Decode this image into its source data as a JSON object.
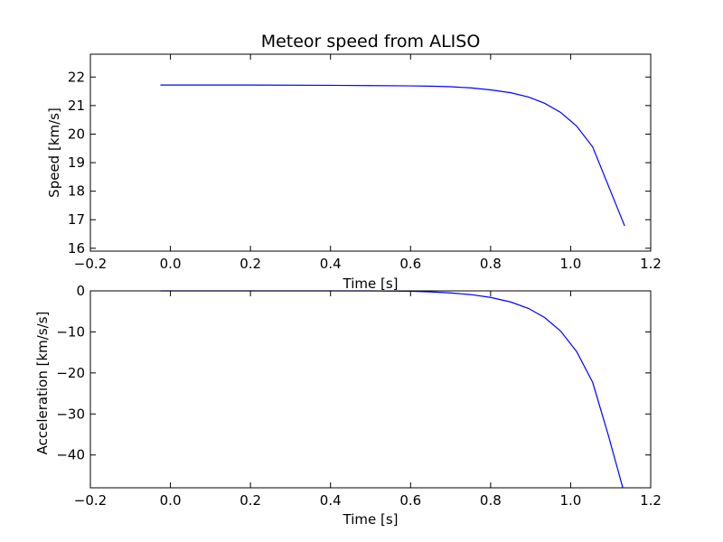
{
  "chart_data": [
    {
      "type": "line",
      "title": "Meteor speed from  ALISO",
      "xlabel": "Time [s]",
      "ylabel": "Speed [km/s]",
      "xlim": [
        -0.2,
        1.2
      ],
      "ylim": [
        15.9,
        22.8
      ],
      "xticks": [
        -0.2,
        0.0,
        0.2,
        0.4,
        0.6,
        0.8,
        1.0,
        1.2
      ],
      "xtick_labels": [
        "−0.2",
        "0.0",
        "0.2",
        "0.4",
        "0.6",
        "0.8",
        "1.0",
        "1.2"
      ],
      "yticks": [
        16,
        17,
        18,
        19,
        20,
        21,
        22
      ],
      "ytick_labels": [
        "16",
        "17",
        "18",
        "19",
        "20",
        "21",
        "22"
      ],
      "grid": false,
      "series": [
        {
          "color": "#0000ff",
          "x": [
            -0.025,
            0.2,
            0.4,
            0.5,
            0.6,
            0.65,
            0.7,
            0.75,
            0.8,
            0.85,
            0.895,
            0.935,
            0.975,
            1.015,
            1.055,
            1.135
          ],
          "y": [
            21.72,
            21.72,
            21.71,
            21.7,
            21.69,
            21.68,
            21.66,
            21.62,
            21.55,
            21.45,
            21.3,
            21.08,
            20.76,
            20.28,
            19.55,
            16.78
          ]
        }
      ]
    },
    {
      "type": "line",
      "title": "",
      "xlabel": "Time [s]",
      "ylabel": "Acceleration [km/s/s]",
      "xlim": [
        -0.2,
        1.2
      ],
      "ylim": [
        -48,
        0
      ],
      "xticks": [
        -0.2,
        0.0,
        0.2,
        0.4,
        0.6,
        0.8,
        1.0,
        1.2
      ],
      "xtick_labels": [
        "−0.2",
        "0.0",
        "0.2",
        "0.4",
        "0.6",
        "0.8",
        "1.0",
        "1.2"
      ],
      "yticks": [
        -40,
        -30,
        -20,
        -10,
        0
      ],
      "ytick_labels": [
        "−40",
        "−30",
        "−20",
        "−10",
        "0"
      ],
      "grid": false,
      "series": [
        {
          "color": "#0000ff",
          "x": [
            -0.025,
            0.2,
            0.4,
            0.5,
            0.6,
            0.65,
            0.7,
            0.75,
            0.8,
            0.85,
            0.895,
            0.935,
            0.975,
            1.015,
            1.055,
            1.095,
            1.13
          ],
          "y": [
            0.0,
            0.0,
            0.0,
            0.0,
            -0.1,
            -0.25,
            -0.5,
            -0.9,
            -1.6,
            -2.7,
            -4.3,
            -6.5,
            -9.8,
            -14.8,
            -22.3,
            -35.5,
            -47.9
          ]
        }
      ]
    }
  ]
}
